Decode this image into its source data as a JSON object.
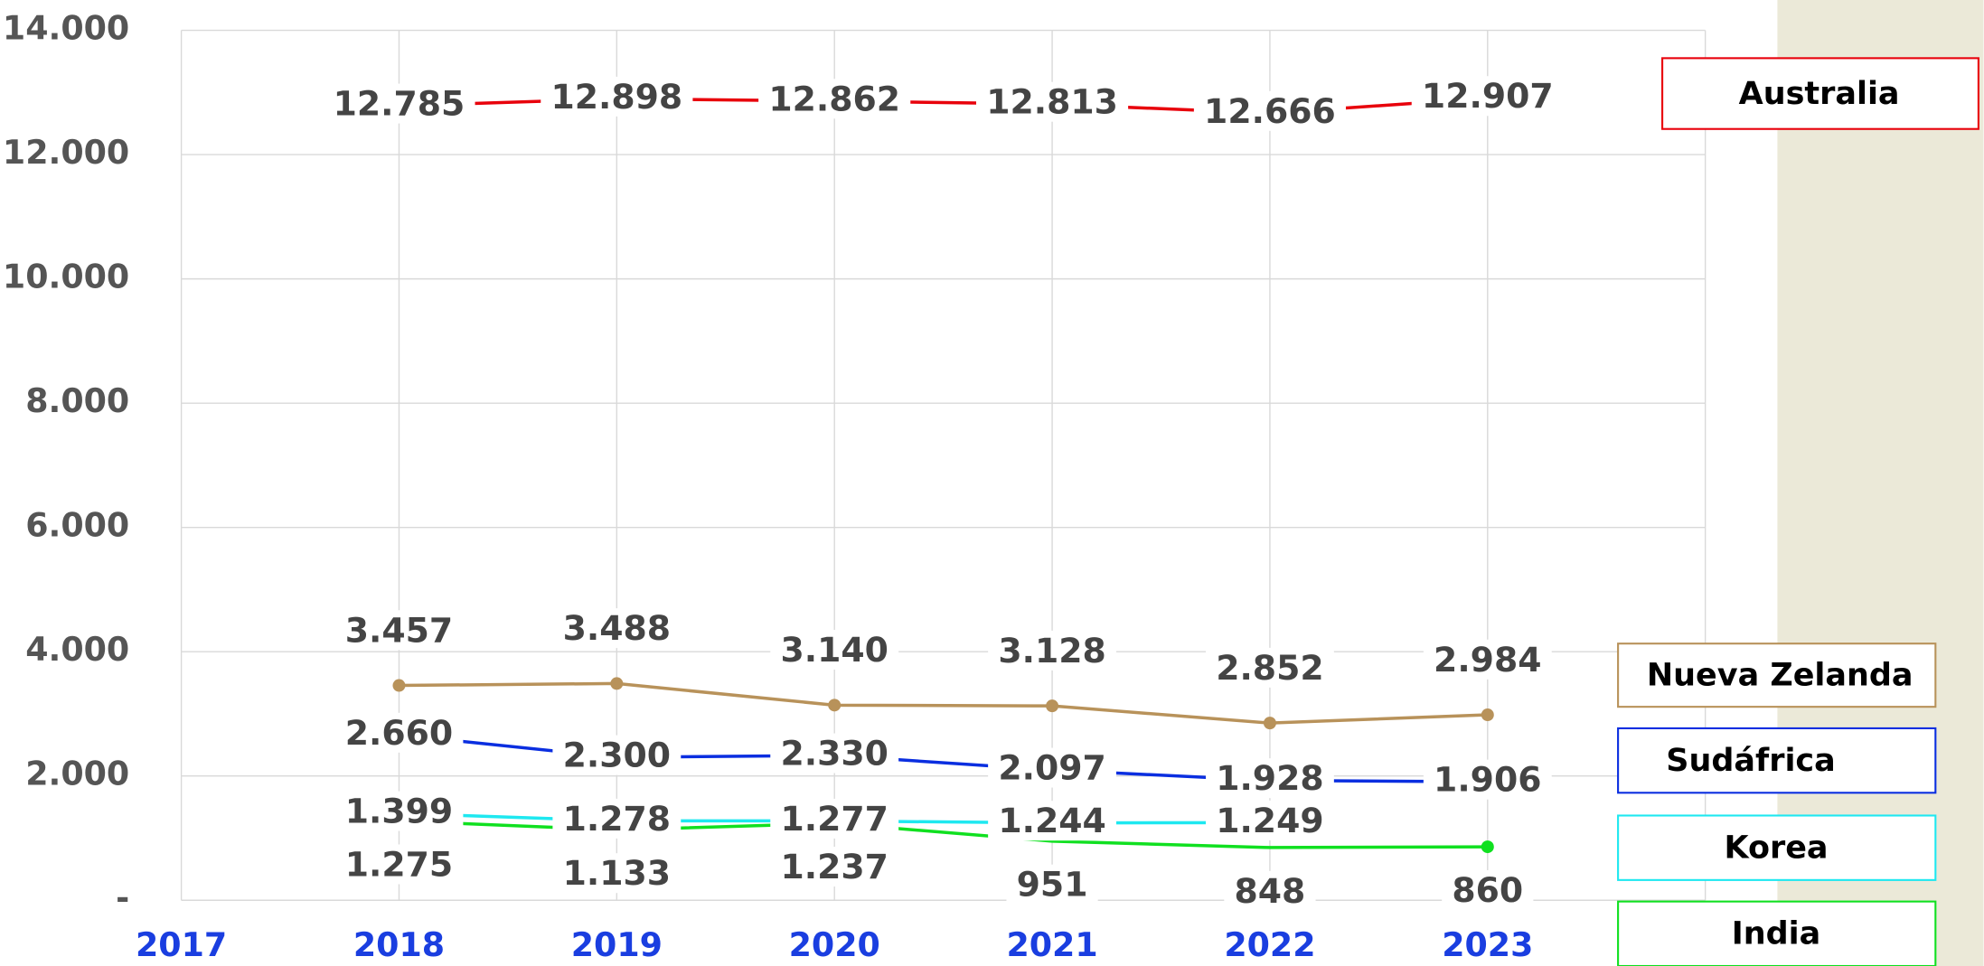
{
  "chart_data": {
    "type": "line",
    "categories": [
      "2017",
      "2018",
      "2019",
      "2020",
      "2021",
      "2022",
      "2023"
    ],
    "ylim": [
      0,
      14000
    ],
    "yticks": [
      {
        "value": 0,
        "label": "-"
      },
      {
        "value": 2000,
        "label": "2.000"
      },
      {
        "value": 4000,
        "label": "4.000"
      },
      {
        "value": 6000,
        "label": "6.000"
      },
      {
        "value": 8000,
        "label": "8.000"
      },
      {
        "value": 10000,
        "label": "10.000"
      },
      {
        "value": 12000,
        "label": "12.000"
      },
      {
        "value": 14000,
        "label": "14.000"
      }
    ],
    "grid": true,
    "series": [
      {
        "name": "Australia",
        "color": "#e8000b",
        "values": [
          null,
          12785,
          12898,
          12862,
          12813,
          12666,
          12907
        ],
        "value_labels": [
          null,
          "12.785",
          "12.898",
          "12.862",
          "12.813",
          "12.666",
          "12.907"
        ]
      },
      {
        "name": "Nueva Zelanda",
        "color": "#b8925a",
        "values": [
          null,
          3457,
          3488,
          3140,
          3128,
          2852,
          2984
        ],
        "value_labels": [
          null,
          "3.457",
          "3.488",
          "3.140",
          "3.128",
          "2.852",
          "2.984"
        ]
      },
      {
        "name": "Sudáfrica",
        "color": "#0a2ee0",
        "values": [
          null,
          2660,
          2300,
          2330,
          2097,
          1928,
          1906
        ],
        "value_labels": [
          null,
          "2.660",
          "2.300",
          "2.330",
          "2.097",
          "1.928",
          "1.906"
        ]
      },
      {
        "name": "Korea",
        "color": "#1ee8f0",
        "values": [
          null,
          1399,
          1278,
          1277,
          1244,
          1249,
          null
        ],
        "value_labels": [
          null,
          "1.399",
          "1.278",
          "1.277",
          "1.244",
          "1.249",
          null
        ]
      },
      {
        "name": "India",
        "color": "#10e020",
        "values": [
          null,
          1275,
          1133,
          1237,
          951,
          848,
          860
        ],
        "value_labels": [
          null,
          "1.275",
          "1.133",
          "1.237",
          "951",
          "848",
          "860"
        ]
      }
    ]
  }
}
